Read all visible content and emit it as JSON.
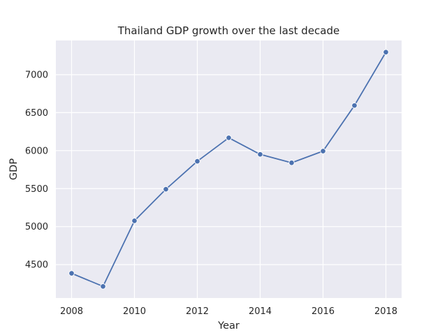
{
  "chart_data": {
    "type": "line",
    "title": "Thailand GDP growth over the last decade",
    "xlabel": "Year",
    "ylabel": "GDP",
    "x": [
      2008,
      2009,
      2010,
      2011,
      2012,
      2013,
      2014,
      2015,
      2016,
      2017,
      2018
    ],
    "series": [
      {
        "values": [
          4385,
          4213,
          5076,
          5492,
          5860,
          6169,
          5951,
          5840,
          5994,
          6594,
          7296
        ]
      }
    ],
    "xticks": [
      2008,
      2010,
      2012,
      2014,
      2016,
      2018
    ],
    "yticks": [
      4500,
      5000,
      5500,
      6000,
      6500,
      7000
    ],
    "xlim": [
      2007.5,
      2018.5
    ],
    "ylim": [
      4060,
      7450
    ],
    "grid": true,
    "legend": "none",
    "colors": {
      "line": "#4c72b0",
      "plot_background": "#eaeaf2",
      "grid": "#ffffff",
      "text": "#262626"
    }
  }
}
